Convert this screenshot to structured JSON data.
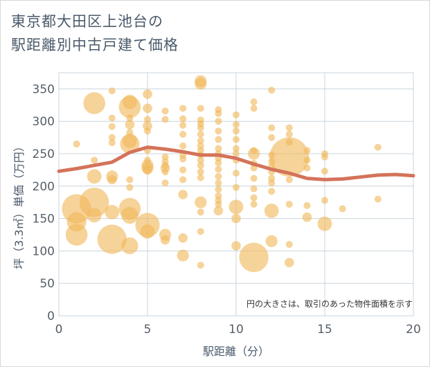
{
  "title_line1": "東京都大田区上池台の",
  "title_line2": "駅距離別中古戸建て価格",
  "chart_data": {
    "type": "scatter",
    "title": "東京都大田区上池台の駅距離別中古戸建て価格",
    "xlabel": "駅距離（分）",
    "ylabel": "坪（3.3㎡）単価（万円）",
    "note": "円の大きさは、取引のあった物件面積を示す",
    "xlim": [
      0,
      20
    ],
    "ylim": [
      0,
      375
    ],
    "x_ticks": [
      0,
      5,
      10,
      15,
      20
    ],
    "y_ticks": [
      0,
      50,
      100,
      150,
      200,
      250,
      300,
      350
    ],
    "grid": true,
    "colors": {
      "bubble": "#f0b85a",
      "line": "#d4735a",
      "grid": "#c9d4dc"
    },
    "points": [
      {
        "x": 1,
        "y": 265,
        "s": 3
      },
      {
        "x": 1,
        "y": 165,
        "s": 12
      },
      {
        "x": 1,
        "y": 145,
        "s": 8
      },
      {
        "x": 1,
        "y": 125,
        "s": 9
      },
      {
        "x": 2,
        "y": 328,
        "s": 9
      },
      {
        "x": 2,
        "y": 240,
        "s": 3
      },
      {
        "x": 2,
        "y": 215,
        "s": 6
      },
      {
        "x": 2,
        "y": 175,
        "s": 12
      },
      {
        "x": 2,
        "y": 155,
        "s": 6
      },
      {
        "x": 3,
        "y": 347,
        "s": 3
      },
      {
        "x": 3,
        "y": 305,
        "s": 3
      },
      {
        "x": 3,
        "y": 292,
        "s": 3
      },
      {
        "x": 3,
        "y": 275,
        "s": 3
      },
      {
        "x": 3,
        "y": 267,
        "s": 3
      },
      {
        "x": 3,
        "y": 215,
        "s": 5
      },
      {
        "x": 3,
        "y": 210,
        "s": 4
      },
      {
        "x": 3,
        "y": 160,
        "s": 6
      },
      {
        "x": 3,
        "y": 118,
        "s": 12
      },
      {
        "x": 4,
        "y": 330,
        "s": 6
      },
      {
        "x": 4,
        "y": 322,
        "s": 9
      },
      {
        "x": 4,
        "y": 305,
        "s": 3
      },
      {
        "x": 4,
        "y": 295,
        "s": 4
      },
      {
        "x": 4,
        "y": 283,
        "s": 3
      },
      {
        "x": 4,
        "y": 270,
        "s": 6
      },
      {
        "x": 4,
        "y": 265,
        "s": 8
      },
      {
        "x": 4,
        "y": 210,
        "s": 3
      },
      {
        "x": 4,
        "y": 198,
        "s": 3
      },
      {
        "x": 4,
        "y": 165,
        "s": 9
      },
      {
        "x": 4,
        "y": 155,
        "s": 7
      },
      {
        "x": 4,
        "y": 108,
        "s": 7
      },
      {
        "x": 5,
        "y": 342,
        "s": 4
      },
      {
        "x": 5,
        "y": 320,
        "s": 4
      },
      {
        "x": 5,
        "y": 303,
        "s": 3
      },
      {
        "x": 5,
        "y": 293,
        "s": 4
      },
      {
        "x": 5,
        "y": 285,
        "s": 3
      },
      {
        "x": 5,
        "y": 255,
        "s": 3
      },
      {
        "x": 5,
        "y": 240,
        "s": 3
      },
      {
        "x": 5,
        "y": 232,
        "s": 5
      },
      {
        "x": 5,
        "y": 228,
        "s": 5
      },
      {
        "x": 5,
        "y": 225,
        "s": 4
      },
      {
        "x": 5,
        "y": 140,
        "s": 10
      },
      {
        "x": 5,
        "y": 130,
        "s": 6
      },
      {
        "x": 6,
        "y": 316,
        "s": 3
      },
      {
        "x": 6,
        "y": 303,
        "s": 3
      },
      {
        "x": 6,
        "y": 245,
        "s": 3
      },
      {
        "x": 6,
        "y": 238,
        "s": 3
      },
      {
        "x": 6,
        "y": 232,
        "s": 3
      },
      {
        "x": 6,
        "y": 228,
        "s": 4
      },
      {
        "x": 6,
        "y": 222,
        "s": 3
      },
      {
        "x": 6,
        "y": 205,
        "s": 3
      },
      {
        "x": 6,
        "y": 125,
        "s": 5
      },
      {
        "x": 6,
        "y": 117,
        "s": 4
      },
      {
        "x": 7,
        "y": 320,
        "s": 3
      },
      {
        "x": 7,
        "y": 304,
        "s": 3
      },
      {
        "x": 7,
        "y": 294,
        "s": 3
      },
      {
        "x": 7,
        "y": 280,
        "s": 3
      },
      {
        "x": 7,
        "y": 262,
        "s": 3
      },
      {
        "x": 7,
        "y": 248,
        "s": 3
      },
      {
        "x": 7,
        "y": 242,
        "s": 3
      },
      {
        "x": 7,
        "y": 225,
        "s": 3
      },
      {
        "x": 7,
        "y": 210,
        "s": 3
      },
      {
        "x": 7,
        "y": 187,
        "s": 4
      },
      {
        "x": 7,
        "y": 120,
        "s": 4
      },
      {
        "x": 7,
        "y": 93,
        "s": 5
      },
      {
        "x": 8,
        "y": 362,
        "s": 5
      },
      {
        "x": 8,
        "y": 358,
        "s": 5
      },
      {
        "x": 8,
        "y": 320,
        "s": 3
      },
      {
        "x": 8,
        "y": 302,
        "s": 3
      },
      {
        "x": 8,
        "y": 296,
        "s": 3
      },
      {
        "x": 8,
        "y": 290,
        "s": 3
      },
      {
        "x": 8,
        "y": 280,
        "s": 3
      },
      {
        "x": 8,
        "y": 270,
        "s": 3
      },
      {
        "x": 8,
        "y": 262,
        "s": 3
      },
      {
        "x": 8,
        "y": 255,
        "s": 3
      },
      {
        "x": 8,
        "y": 248,
        "s": 3
      },
      {
        "x": 8,
        "y": 240,
        "s": 3
      },
      {
        "x": 8,
        "y": 232,
        "s": 3
      },
      {
        "x": 8,
        "y": 222,
        "s": 3
      },
      {
        "x": 8,
        "y": 213,
        "s": 3
      },
      {
        "x": 8,
        "y": 175,
        "s": 5
      },
      {
        "x": 8,
        "y": 160,
        "s": 3
      },
      {
        "x": 8,
        "y": 130,
        "s": 3
      },
      {
        "x": 8,
        "y": 78,
        "s": 3
      },
      {
        "x": 9,
        "y": 318,
        "s": 3
      },
      {
        "x": 9,
        "y": 312,
        "s": 3
      },
      {
        "x": 9,
        "y": 300,
        "s": 3
      },
      {
        "x": 9,
        "y": 285,
        "s": 3
      },
      {
        "x": 9,
        "y": 272,
        "s": 3
      },
      {
        "x": 9,
        "y": 258,
        "s": 3
      },
      {
        "x": 9,
        "y": 250,
        "s": 3
      },
      {
        "x": 9,
        "y": 243,
        "s": 3
      },
      {
        "x": 9,
        "y": 236,
        "s": 3
      },
      {
        "x": 9,
        "y": 226,
        "s": 3
      },
      {
        "x": 9,
        "y": 215,
        "s": 3
      },
      {
        "x": 9,
        "y": 205,
        "s": 3
      },
      {
        "x": 9,
        "y": 195,
        "s": 3
      },
      {
        "x": 9,
        "y": 185,
        "s": 3
      },
      {
        "x": 9,
        "y": 178,
        "s": 3
      },
      {
        "x": 9,
        "y": 172,
        "s": 3
      },
      {
        "x": 9,
        "y": 162,
        "s": 4
      },
      {
        "x": 10,
        "y": 310,
        "s": 3
      },
      {
        "x": 10,
        "y": 295,
        "s": 3
      },
      {
        "x": 10,
        "y": 285,
        "s": 3
      },
      {
        "x": 10,
        "y": 272,
        "s": 3
      },
      {
        "x": 10,
        "y": 258,
        "s": 3
      },
      {
        "x": 10,
        "y": 250,
        "s": 3
      },
      {
        "x": 10,
        "y": 240,
        "s": 3
      },
      {
        "x": 10,
        "y": 220,
        "s": 3
      },
      {
        "x": 10,
        "y": 198,
        "s": 3
      },
      {
        "x": 10,
        "y": 168,
        "s": 6
      },
      {
        "x": 10,
        "y": 150,
        "s": 4
      },
      {
        "x": 10,
        "y": 108,
        "s": 4
      },
      {
        "x": 11,
        "y": 330,
        "s": 3
      },
      {
        "x": 11,
        "y": 320,
        "s": 3
      },
      {
        "x": 11,
        "y": 255,
        "s": 3
      },
      {
        "x": 11,
        "y": 250,
        "s": 5
      },
      {
        "x": 11,
        "y": 235,
        "s": 3
      },
      {
        "x": 11,
        "y": 228,
        "s": 3
      },
      {
        "x": 11,
        "y": 212,
        "s": 3
      },
      {
        "x": 11,
        "y": 196,
        "s": 3
      },
      {
        "x": 11,
        "y": 182,
        "s": 3
      },
      {
        "x": 11,
        "y": 172,
        "s": 3
      },
      {
        "x": 11,
        "y": 90,
        "s": 12
      },
      {
        "x": 12,
        "y": 348,
        "s": 3
      },
      {
        "x": 12,
        "y": 290,
        "s": 3
      },
      {
        "x": 12,
        "y": 275,
        "s": 3
      },
      {
        "x": 12,
        "y": 248,
        "s": 3
      },
      {
        "x": 12,
        "y": 238,
        "s": 3
      },
      {
        "x": 12,
        "y": 230,
        "s": 3
      },
      {
        "x": 12,
        "y": 222,
        "s": 3
      },
      {
        "x": 12,
        "y": 212,
        "s": 3
      },
      {
        "x": 12,
        "y": 205,
        "s": 3
      },
      {
        "x": 12,
        "y": 192,
        "s": 3
      },
      {
        "x": 12,
        "y": 162,
        "s": 6
      },
      {
        "x": 12,
        "y": 115,
        "s": 5
      },
      {
        "x": 13,
        "y": 290,
        "s": 3
      },
      {
        "x": 13,
        "y": 280,
        "s": 3
      },
      {
        "x": 13,
        "y": 268,
        "s": 3
      },
      {
        "x": 13,
        "y": 245,
        "s": 16
      },
      {
        "x": 13,
        "y": 210,
        "s": 3
      },
      {
        "x": 13,
        "y": 172,
        "s": 3
      },
      {
        "x": 13,
        "y": 110,
        "s": 3
      },
      {
        "x": 13,
        "y": 82,
        "s": 4
      },
      {
        "x": 14,
        "y": 255,
        "s": 3
      },
      {
        "x": 14,
        "y": 240,
        "s": 3
      },
      {
        "x": 14,
        "y": 228,
        "s": 3
      },
      {
        "x": 14,
        "y": 170,
        "s": 3
      },
      {
        "x": 14,
        "y": 152,
        "s": 4
      },
      {
        "x": 15,
        "y": 250,
        "s": 3
      },
      {
        "x": 15,
        "y": 245,
        "s": 3
      },
      {
        "x": 15,
        "y": 223,
        "s": 3
      },
      {
        "x": 15,
        "y": 178,
        "s": 3
      },
      {
        "x": 15,
        "y": 142,
        "s": 6
      },
      {
        "x": 16,
        "y": 165,
        "s": 3
      },
      {
        "x": 18,
        "y": 260,
        "s": 3
      },
      {
        "x": 18,
        "y": 180,
        "s": 3
      }
    ],
    "trend_x": [
      0,
      1,
      2,
      3,
      4,
      5,
      6,
      7,
      8,
      9,
      10,
      11,
      12,
      13,
      14,
      15,
      16,
      17,
      18,
      19,
      20
    ],
    "trend_y": [
      223,
      227,
      232,
      237,
      252,
      260,
      257,
      253,
      248,
      248,
      243,
      234,
      226,
      220,
      212,
      210,
      211,
      214,
      217,
      218,
      216
    ]
  }
}
